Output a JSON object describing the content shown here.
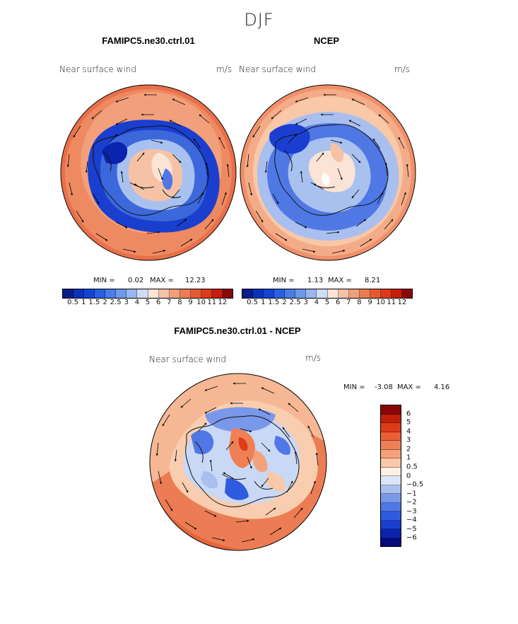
{
  "figure": {
    "season": "DJF"
  },
  "panels": [
    {
      "title": "FAMIPC5.ne30.ctrl.01",
      "variable_label": "Near surface wind",
      "units": "m/s",
      "min_label": "MIN =",
      "min": "0.02",
      "max_label": "MAX =",
      "max": "12.23",
      "fill": "model"
    },
    {
      "title": "NCEP",
      "variable_label": "Near surface wind",
      "units": "m/s",
      "min_label": "MIN =",
      "min": "1.13",
      "max_label": "MAX =",
      "max": "8.21",
      "fill": "obs"
    },
    {
      "title": "FAMIPC5.ne30.ctrl.01 - NCEP",
      "variable_label": "Near surface wind",
      "units": "m/s",
      "min_label": "MIN =",
      "min": "-3.08",
      "max_label": "MAX =",
      "max": "4.16",
      "fill": "diff"
    }
  ],
  "colorbar_abs": {
    "colors": [
      "#081d8c",
      "#0a33b8",
      "#1345d4",
      "#2a5fe0",
      "#4a7de6",
      "#6f98ea",
      "#9bb6ee",
      "#cfdcf5",
      "#fbe4d6",
      "#f6c2a6",
      "#f19f7b",
      "#ec7c54",
      "#e65a32",
      "#dc3a1a",
      "#c51d0b",
      "#8a0808"
    ],
    "tick_labels": [
      "0.5",
      "1",
      "1.5",
      "2",
      "2.5",
      "3",
      "4",
      "5",
      "6",
      "7",
      "8",
      "9",
      "10",
      "11",
      "12"
    ]
  },
  "colorbar_diff": {
    "colors": [
      "#070a7c",
      "#0a24ad",
      "#1a3fd0",
      "#2e5be0",
      "#5077e6",
      "#7a98ea",
      "#a9bfef",
      "#dbe7f8",
      "#fdf0e4",
      "#f8c8a8",
      "#f3a27b",
      "#ef8055",
      "#ea5e33",
      "#de3c18",
      "#c0200a",
      "#8a0606"
    ],
    "tick_labels": [
      "6",
      "5",
      "4",
      "3",
      "2",
      "1",
      "0.5",
      "0",
      "−0.5",
      "−1",
      "−2",
      "−3",
      "−4",
      "−5",
      "−6"
    ]
  }
}
